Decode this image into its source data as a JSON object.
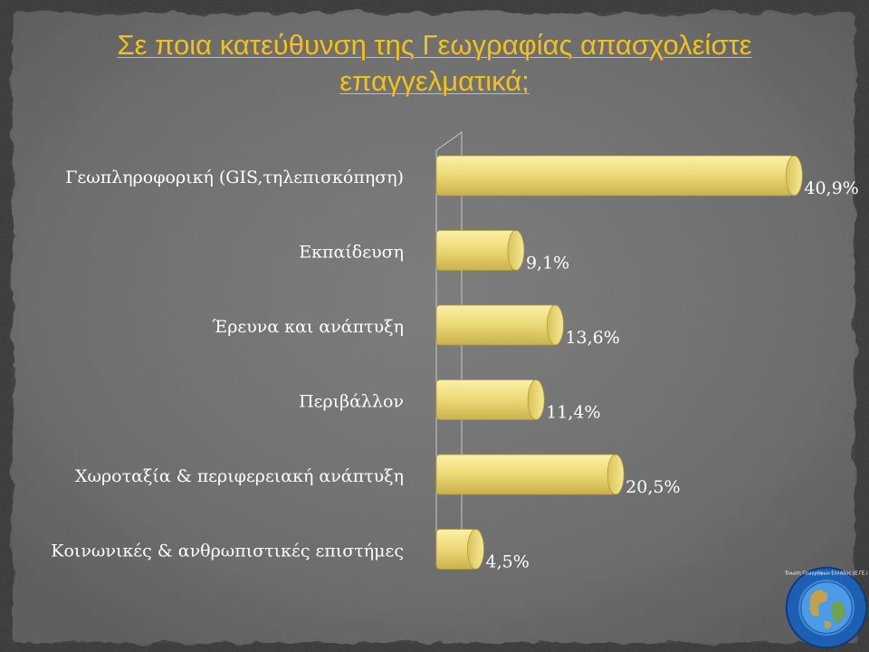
{
  "title": "Σε ποια κατεύθυνση της Γεωγραφίας απασχολείστε επαγγελματικά;",
  "chart_data": {
    "type": "bar",
    "orientation": "horizontal",
    "categories": [
      "Γεωπληροφορική (GIS,τηλεπισκόπηση)",
      "Εκπαίδευση",
      "Έρευνα και ανάπτυξη",
      "Περιβάλλον",
      "Χωροταξία & περιφερειακή ανάπτυξη",
      "Κοινωνικές & ανθρωπιστικές επιστήμες"
    ],
    "values": [
      40.9,
      9.1,
      13.6,
      11.4,
      20.5,
      4.5
    ],
    "value_labels": [
      "40,9%",
      "9,1%",
      "13,6%",
      "11,4%",
      "20,5%",
      "4,5%"
    ],
    "xlim": [
      0,
      42
    ],
    "grid": false,
    "legend": "none",
    "bar_color": "#f0dc78"
  },
  "logo": {
    "icon": "globe-seal-icon",
    "text": "Ένωση Γεωγράφων Ελλάδος (Ε.ΓΕ.)"
  }
}
